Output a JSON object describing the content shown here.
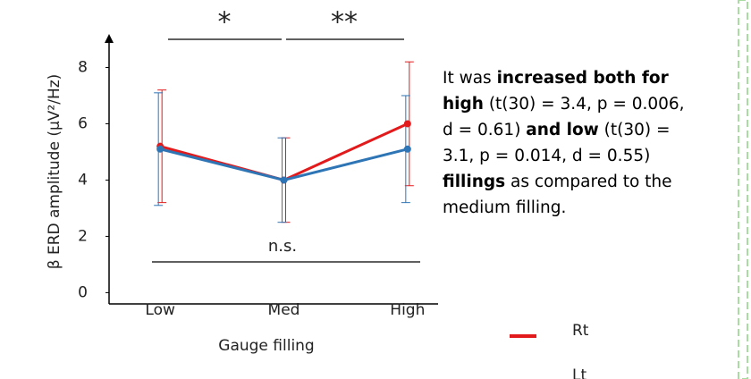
{
  "chart_data": {
    "type": "line",
    "y_label": "β ERD amplitude (μV²/Hz)",
    "x_label": "Gauge filling",
    "categories": [
      "Low",
      "Med",
      "High"
    ],
    "series": [
      {
        "name": "Rt",
        "color": "#e31a1c",
        "values": [
          5.2,
          4.0,
          6.0
        ],
        "errors": [
          2.0,
          1.5,
          2.2
        ]
      },
      {
        "name": "Lt",
        "color": "#2e75b6",
        "values": [
          5.1,
          4.0,
          5.1
        ],
        "errors": [
          2.0,
          1.5,
          1.9
        ]
      }
    ],
    "ylim": [
      -0.4,
      9
    ],
    "yticks": [
      0,
      2,
      4,
      6,
      8
    ],
    "annotations": [
      {
        "text": "*"
      },
      {
        "text": "**"
      },
      {
        "text": "n.s."
      }
    ]
  },
  "description": {
    "lines": [
      [
        {
          "text": "It was ",
          "bold": false
        },
        {
          "text": "increased both for",
          "bold": true
        }
      ],
      [
        {
          "text": "high",
          "bold": true
        },
        {
          "text": " (t(30) = 3.4, p = 0.006,",
          "bold": false
        }
      ],
      [
        {
          "text": "d = 0.61) ",
          "bold": false
        },
        {
          "text": "and low",
          "bold": true
        },
        {
          "text": " (t(30) =",
          "bold": false
        }
      ],
      [
        {
          "text": "3.1, p = 0.014, d = 0.55)",
          "bold": false
        }
      ],
      [
        {
          "text": "fillings",
          "bold": true
        },
        {
          "text": " as compared to the",
          "bold": false
        }
      ],
      [
        {
          "text": "medium filling.",
          "bold": false
        }
      ]
    ]
  }
}
